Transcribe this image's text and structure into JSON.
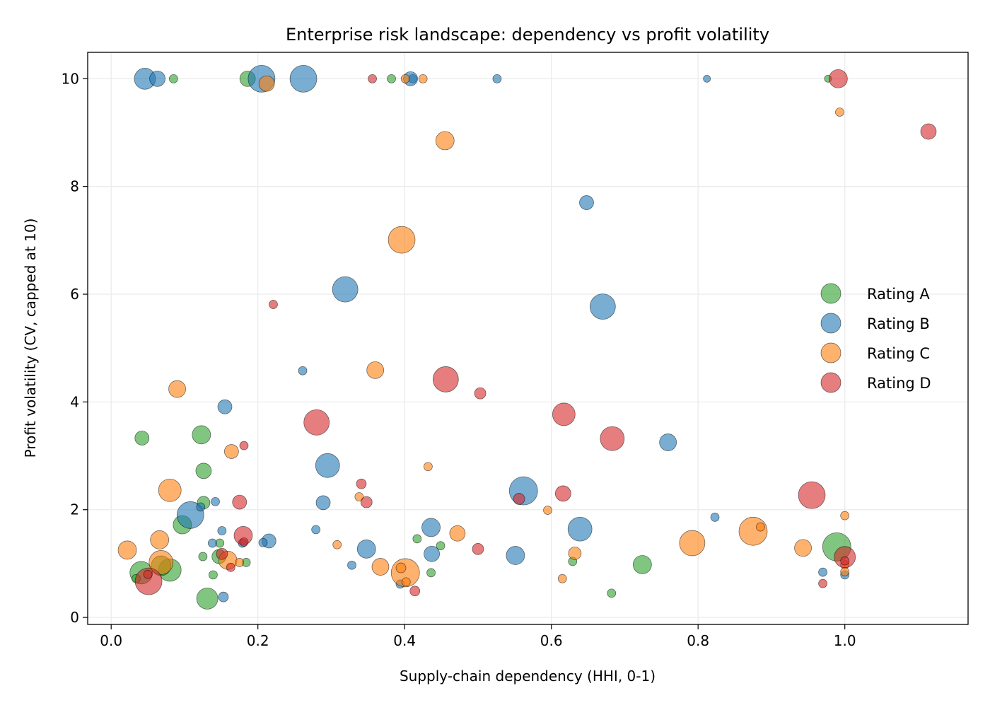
{
  "chart_data": {
    "type": "scatter",
    "title": "Enterprise risk landscape: dependency vs profit volatility",
    "xlabel": "Supply-chain dependency (HHI, 0-1)",
    "ylabel": "Profit volatility (CV, capped at 10)",
    "xlim": [
      -0.032,
      1.168
    ],
    "ylim": [
      -0.13,
      10.49
    ],
    "xticks": [
      0.0,
      0.2,
      0.4,
      0.6,
      0.8,
      1.0
    ],
    "xtick_labels": [
      "0.0",
      "0.2",
      "0.4",
      "0.6",
      "0.8",
      "1.0"
    ],
    "yticks": [
      0,
      2,
      4,
      6,
      8,
      10
    ],
    "ytick_labels": [
      "0",
      "2",
      "4",
      "6",
      "8",
      "10"
    ],
    "grid": true,
    "legend_position": "center-right",
    "point_format": [
      "x",
      "y",
      "marker_size"
    ],
    "series": [
      {
        "name": "Rating A",
        "color": "#2ca02c",
        "points": [
          [
            0.041,
            0.83,
            256
          ],
          [
            0.034,
            0.72,
            36
          ],
          [
            0.085,
            10,
            36
          ],
          [
            0.186,
            10,
            121
          ],
          [
            0.123,
            3.39,
            169
          ],
          [
            0.042,
            3.33,
            100
          ],
          [
            0.126,
            2.72,
            121
          ],
          [
            0.126,
            2.13,
            81
          ],
          [
            0.097,
            1.72,
            169
          ],
          [
            0.08,
            0.88,
            256
          ],
          [
            0.068,
            0.96,
            196
          ],
          [
            0.131,
            0.35,
            225
          ],
          [
            0.125,
            1.13,
            36
          ],
          [
            0.148,
            1.38,
            36
          ],
          [
            0.147,
            1.13,
            100
          ],
          [
            0.139,
            0.79,
            36
          ],
          [
            0.184,
            1.02,
            36
          ],
          [
            0.382,
            10,
            36
          ],
          [
            0.417,
            1.46,
            36
          ],
          [
            0.449,
            1.33,
            36
          ],
          [
            0.436,
            0.83,
            36
          ],
          [
            0.629,
            1.04,
            36
          ],
          [
            0.682,
            0.45,
            36
          ],
          [
            0.724,
            0.98,
            169
          ],
          [
            0.989,
            1.31,
            400
          ],
          [
            0.977,
            10,
            25
          ]
        ]
      },
      {
        "name": "Rating B",
        "color": "#1f77b4",
        "points": [
          [
            0.046,
            10,
            225
          ],
          [
            0.063,
            10,
            121
          ],
          [
            0.205,
            10,
            361
          ],
          [
            0.262,
            10,
            361
          ],
          [
            0.411,
            10,
            36
          ],
          [
            0.408,
            10,
            100
          ],
          [
            0.526,
            10,
            36
          ],
          [
            0.812,
            10,
            25
          ],
          [
            0.648,
            7.7,
            100
          ],
          [
            0.67,
            5.77,
            324
          ],
          [
            0.319,
            6.09,
            324
          ],
          [
            0.261,
            4.58,
            36
          ],
          [
            0.155,
            3.91,
            100
          ],
          [
            0.108,
            1.9,
            361
          ],
          [
            0.122,
            2.05,
            36
          ],
          [
            0.142,
            2.15,
            36
          ],
          [
            0.151,
            1.61,
            36
          ],
          [
            0.138,
            1.38,
            36
          ],
          [
            0.179,
            1.38,
            36
          ],
          [
            0.215,
            1.42,
            100
          ],
          [
            0.207,
            1.39,
            36
          ],
          [
            0.295,
            2.82,
            289
          ],
          [
            0.289,
            2.13,
            100
          ],
          [
            0.279,
            1.63,
            36
          ],
          [
            0.348,
            1.27,
            169
          ],
          [
            0.328,
            0.97,
            36
          ],
          [
            0.394,
            0.62,
            36
          ],
          [
            0.436,
            1.67,
            169
          ],
          [
            0.437,
            1.18,
            121
          ],
          [
            0.551,
            1.15,
            169
          ],
          [
            0.562,
            2.35,
            400
          ],
          [
            0.639,
            1.64,
            289
          ],
          [
            0.759,
            3.25,
            144
          ],
          [
            0.823,
            1.86,
            36
          ],
          [
            0.97,
            0.84,
            36
          ],
          [
            0.153,
            0.38,
            49
          ],
          [
            1.0,
            0.79,
            36
          ]
        ]
      },
      {
        "name": "Rating C",
        "color": "#ff7f0e",
        "points": [
          [
            0.09,
            4.24,
            144
          ],
          [
            0.164,
            3.08,
            100
          ],
          [
            0.08,
            2.36,
            256
          ],
          [
            0.066,
            1.44,
            169
          ],
          [
            0.022,
            1.25,
            169
          ],
          [
            0.068,
            1.02,
            289
          ],
          [
            0.159,
            1.06,
            169
          ],
          [
            0.175,
            1.02,
            36
          ],
          [
            0.396,
            7.01,
            361
          ],
          [
            0.455,
            8.85,
            169
          ],
          [
            0.36,
            4.59,
            144
          ],
          [
            0.401,
            10,
            36
          ],
          [
            0.425,
            10,
            36
          ],
          [
            0.212,
            9.91,
            121
          ],
          [
            0.993,
            9.38,
            36
          ],
          [
            0.432,
            2.8,
            36
          ],
          [
            0.338,
            2.24,
            36
          ],
          [
            0.308,
            1.35,
            36
          ],
          [
            0.472,
            1.56,
            121
          ],
          [
            0.367,
            0.94,
            144
          ],
          [
            0.401,
            0.83,
            400
          ],
          [
            0.395,
            0.92,
            49
          ],
          [
            0.402,
            0.66,
            36
          ],
          [
            0.595,
            1.99,
            36
          ],
          [
            0.632,
            1.19,
            81
          ],
          [
            0.615,
            0.72,
            36
          ],
          [
            0.792,
            1.38,
            324
          ],
          [
            0.875,
            1.6,
            400
          ],
          [
            0.885,
            1.68,
            36
          ],
          [
            0.943,
            1.29,
            144
          ],
          [
            1.0,
            1.89,
            36
          ],
          [
            1.0,
            0.85,
            36
          ],
          [
            1.0,
            0.98,
            36
          ]
        ]
      },
      {
        "name": "Rating D",
        "color": "#d62728",
        "points": [
          [
            0.356,
            10,
            36
          ],
          [
            0.991,
            10,
            169
          ],
          [
            1.114,
            9.02,
            121
          ],
          [
            0.221,
            5.81,
            36
          ],
          [
            0.456,
            4.42,
            324
          ],
          [
            0.503,
            4.16,
            64
          ],
          [
            0.28,
            3.62,
            324
          ],
          [
            0.181,
            3.19,
            36
          ],
          [
            0.617,
            3.77,
            256
          ],
          [
            0.683,
            3.32,
            289
          ],
          [
            0.341,
            2.48,
            49
          ],
          [
            0.348,
            2.14,
            64
          ],
          [
            0.175,
            2.14,
            100
          ],
          [
            0.18,
            1.52,
            169
          ],
          [
            0.181,
            1.4,
            36
          ],
          [
            0.151,
            1.18,
            64
          ],
          [
            0.163,
            0.93,
            36
          ],
          [
            0.051,
            0.67,
            361
          ],
          [
            0.05,
            0.8,
            36
          ],
          [
            0.616,
            2.3,
            121
          ],
          [
            0.556,
            2.2,
            64
          ],
          [
            0.5,
            1.27,
            64
          ],
          [
            0.414,
            0.49,
            49
          ],
          [
            0.955,
            2.27,
            361
          ],
          [
            1.0,
            1.12,
            225
          ],
          [
            1.0,
            1.05,
            36
          ],
          [
            0.97,
            0.63,
            36
          ]
        ]
      }
    ]
  }
}
